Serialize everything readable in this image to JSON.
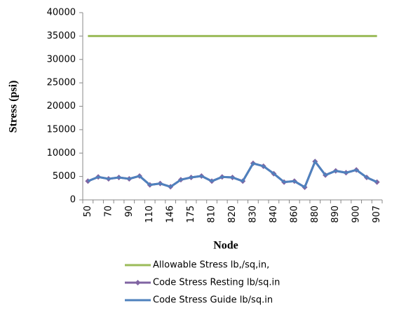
{
  "chart_data": {
    "type": "line",
    "ylabel": "Stress  (psi)",
    "xlabel": "Node",
    "categories": [
      "50",
      null,
      "70",
      null,
      "90",
      null,
      "110",
      null,
      "146",
      null,
      "175",
      null,
      "810",
      null,
      "820",
      null,
      "830",
      null,
      "840",
      null,
      "860",
      null,
      "880",
      null,
      "890",
      null,
      "900",
      null,
      "907"
    ],
    "series": [
      {
        "name": "Allowable Stress lb,/sq,in,",
        "color": "#9bbb59",
        "marker": false,
        "values": [
          35000,
          35000,
          35000,
          35000,
          35000,
          35000,
          35000,
          35000,
          35000,
          35000,
          35000,
          35000,
          35000,
          35000,
          35000,
          35000,
          35000,
          35000,
          35000,
          35000,
          35000,
          35000,
          35000,
          35000,
          35000,
          35000,
          35000,
          35000,
          35000
        ]
      },
      {
        "name": "Code Stress Resting lb/sq.in",
        "color": "#8064a2",
        "marker": true,
        "values": [
          4000,
          4900,
          4500,
          4800,
          4500,
          5100,
          3200,
          3500,
          2800,
          4300,
          4800,
          5100,
          4000,
          4900,
          4800,
          4000,
          7800,
          7200,
          5600,
          3800,
          4000,
          2700,
          8200,
          5300,
          6200,
          5800,
          6400,
          4800,
          3800
        ]
      },
      {
        "name": "Code Stress Guide lb/sq.in",
        "color": "#4f81bd",
        "marker": false,
        "values": [
          4000,
          4900,
          4500,
          4800,
          4500,
          5100,
          3200,
          3500,
          2800,
          4300,
          4800,
          5100,
          4000,
          4900,
          4800,
          4000,
          7800,
          7200,
          5600,
          3800,
          4000,
          2700,
          8200,
          5300,
          6200,
          5800,
          6400,
          4800,
          3800
        ]
      }
    ],
    "ylim": [
      0,
      40000
    ],
    "yticks": [
      0,
      5000,
      10000,
      15000,
      20000,
      25000,
      30000,
      35000,
      40000
    ]
  }
}
